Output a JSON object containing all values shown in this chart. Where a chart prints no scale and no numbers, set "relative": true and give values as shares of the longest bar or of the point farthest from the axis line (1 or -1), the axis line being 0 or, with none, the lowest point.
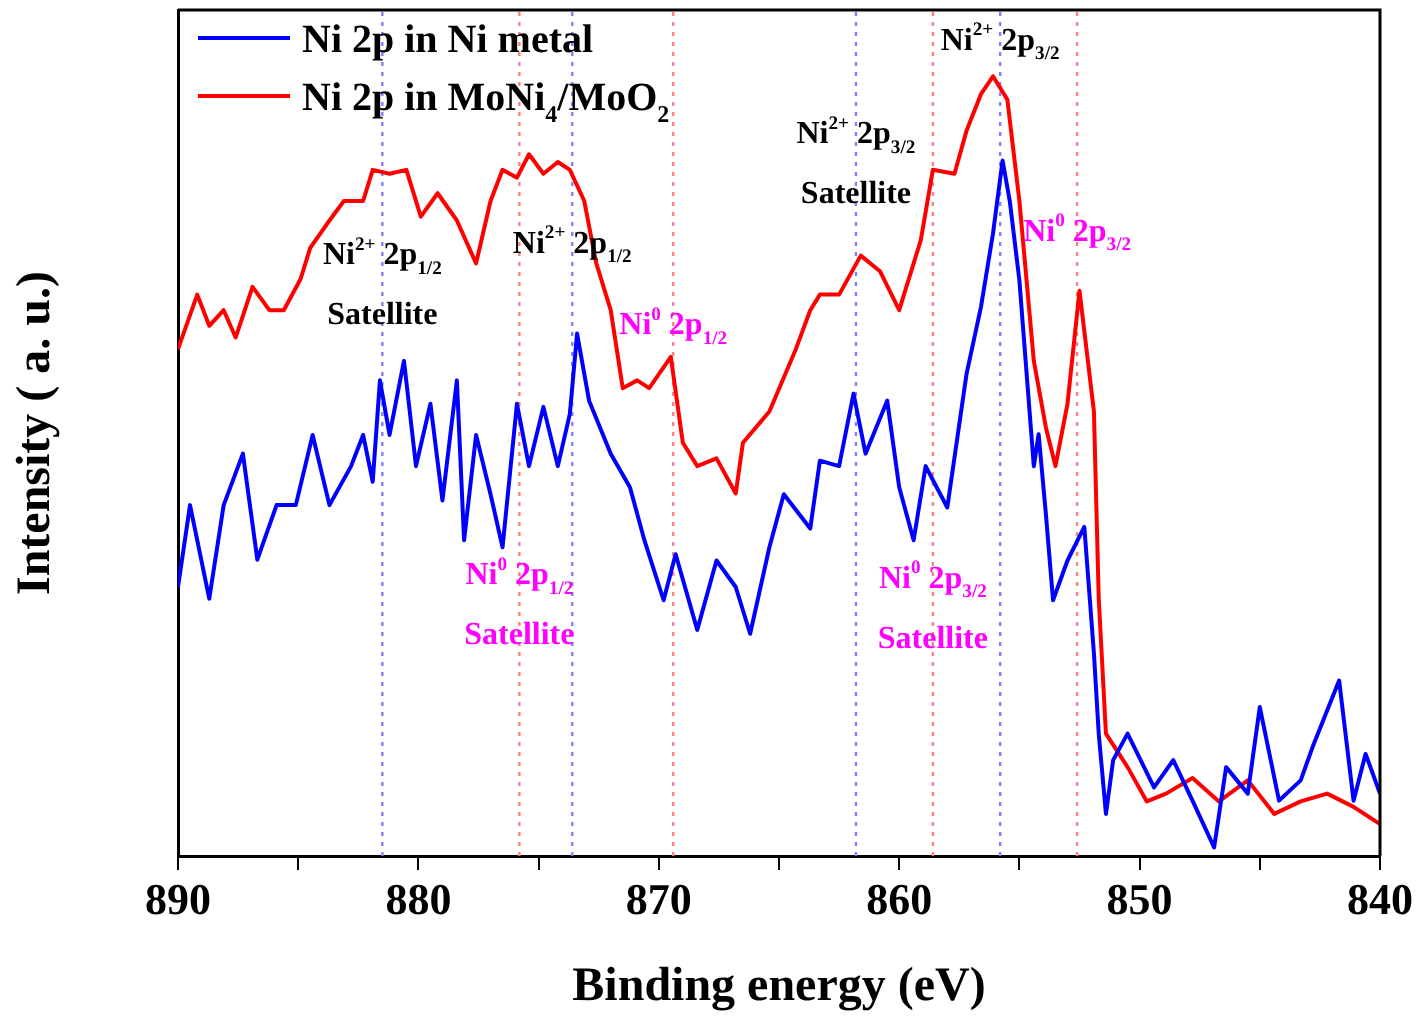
{
  "chart_data": {
    "type": "line",
    "relative": true,
    "xlabel": "Binding energy (eV)",
    "ylabel": "Intensity ( a. u.)",
    "xlim": [
      890,
      840
    ],
    "xticks": [
      890,
      {
        "value": 885,
        "label": null
      },
      880,
      {
        "value": 875,
        "label": null
      },
      870,
      {
        "value": 865,
        "label": null
      },
      860,
      {
        "value": 855,
        "label": null
      },
      850,
      {
        "value": 845,
        "label": null
      },
      840
    ],
    "grid": false,
    "legend": "top left",
    "line_style": "solid",
    "marker": "none",
    "series": [
      {
        "name": "Ni 2p in Ni metal",
        "color": "#0000ff",
        "x": [
          890.0,
          889.5,
          888.7,
          888.1,
          887.3,
          886.7,
          885.9,
          885.1,
          884.4,
          883.7,
          882.8,
          882.3,
          881.9,
          881.6,
          881.2,
          880.6,
          880.1,
          879.5,
          879.0,
          878.4,
          878.1,
          877.6,
          877.0,
          876.5,
          875.9,
          875.4,
          874.8,
          874.2,
          873.7,
          873.4,
          872.9,
          872.0,
          871.2,
          870.6,
          869.8,
          869.3,
          868.4,
          867.6,
          866.8,
          866.2,
          865.4,
          864.8,
          863.7,
          863.3,
          862.5,
          861.9,
          861.4,
          860.5,
          860.0,
          859.4,
          858.9,
          858.0,
          857.2,
          856.6,
          856.1,
          855.7,
          855.4,
          855.0,
          854.4,
          854.2,
          853.9,
          853.6,
          853.0,
          852.3,
          851.9,
          851.7,
          851.4,
          851.1,
          850.5,
          849.4,
          848.6,
          847.8,
          846.9,
          846.4,
          845.5,
          845.0,
          844.2,
          843.3,
          842.8,
          841.7,
          841.1,
          840.6,
          840.0
        ],
        "values": [
          0.345,
          0.45,
          0.33,
          0.45,
          0.516,
          0.38,
          0.45,
          0.45,
          0.54,
          0.45,
          0.5,
          0.54,
          0.48,
          0.61,
          0.54,
          0.635,
          0.5,
          0.58,
          0.456,
          0.61,
          0.405,
          0.54,
          0.464,
          0.396,
          0.58,
          0.5,
          0.576,
          0.5,
          0.567,
          0.67,
          0.584,
          0.516,
          0.473,
          0.405,
          0.328,
          0.387,
          0.29,
          0.379,
          0.345,
          0.285,
          0.396,
          0.464,
          0.42,
          0.507,
          0.5,
          0.593,
          0.516,
          0.584,
          0.473,
          0.405,
          0.5,
          0.447,
          0.618,
          0.704,
          0.798,
          0.892,
          0.84,
          0.738,
          0.5,
          0.541,
          0.439,
          0.328,
          0.379,
          0.422,
          0.26,
          0.157,
          0.054,
          0.123,
          0.157,
          0.088,
          0.123,
          0.071,
          0.011,
          0.114,
          0.08,
          0.191,
          0.071,
          0.097,
          0.14,
          0.225,
          0.071,
          0.131,
          0.08
        ]
      },
      {
        "name": "Ni 2p in MoNi$_{4}$/MoO$_{2}$",
        "color": "#ff0000",
        "x": [
          890.0,
          889.2,
          888.7,
          888.1,
          887.6,
          886.9,
          886.2,
          885.6,
          884.9,
          884.5,
          883.7,
          883.1,
          882.3,
          881.9,
          881.2,
          880.5,
          879.9,
          879.2,
          878.4,
          877.6,
          877.0,
          876.5,
          875.9,
          875.4,
          874.8,
          874.2,
          873.7,
          873.1,
          872.6,
          872.0,
          871.5,
          870.9,
          870.4,
          869.5,
          869.0,
          868.4,
          867.6,
          866.8,
          866.5,
          865.4,
          864.3,
          863.7,
          863.3,
          862.5,
          861.6,
          860.8,
          860.0,
          859.1,
          858.6,
          857.7,
          857.2,
          856.6,
          856.1,
          855.5,
          855.0,
          854.4,
          853.9,
          853.5,
          853.0,
          852.5,
          851.9,
          851.7,
          851.4,
          850.5,
          849.7,
          848.9,
          847.8,
          846.7,
          845.5,
          844.4,
          843.3,
          842.2,
          841.1,
          840.0
        ],
        "values": [
          0.65,
          0.72,
          0.68,
          0.7,
          0.665,
          0.73,
          0.7,
          0.7,
          0.74,
          0.78,
          0.815,
          0.84,
          0.84,
          0.88,
          0.875,
          0.88,
          0.82,
          0.85,
          0.815,
          0.76,
          0.84,
          0.88,
          0.87,
          0.9,
          0.875,
          0.89,
          0.88,
          0.84,
          0.76,
          0.7,
          0.6,
          0.61,
          0.6,
          0.64,
          0.53,
          0.5,
          0.51,
          0.465,
          0.53,
          0.57,
          0.65,
          0.7,
          0.72,
          0.72,
          0.77,
          0.75,
          0.7,
          0.79,
          0.88,
          0.875,
          0.93,
          0.977,
          1,
          0.97,
          0.84,
          0.635,
          0.55,
          0.5,
          0.58,
          0.725,
          0.57,
          0.33,
          0.157,
          0.114,
          0.07,
          0.08,
          0.1,
          0.07,
          0.097,
          0.054,
          0.07,
          0.08,
          0.063,
          0.041
        ]
      }
    ],
    "ref_lines": [
      {
        "axis": "x",
        "value": 881.5,
        "color": "#8080ff",
        "line_style": "dotted"
      },
      {
        "axis": "x",
        "value": 875.8,
        "color": "#ff8080",
        "line_style": "dotted"
      },
      {
        "axis": "x",
        "value": 873.6,
        "color": "#8080ff",
        "line_style": "dotted"
      },
      {
        "axis": "x",
        "value": 869.4,
        "color": "#ff8080",
        "line_style": "dotted"
      },
      {
        "axis": "x",
        "value": 861.8,
        "color": "#8080ff",
        "line_style": "dotted"
      },
      {
        "axis": "x",
        "value": 858.6,
        "color": "#ff8080",
        "line_style": "dotted"
      },
      {
        "axis": "x",
        "value": 855.8,
        "color": "#8080ff",
        "line_style": "dotted"
      },
      {
        "axis": "x",
        "value": 852.6,
        "color": "#ff8080",
        "line_style": "dotted"
      }
    ],
    "annotations": [
      {
        "text": "Ni$^{2+}$ 2p$_{1/2}$\nSatellite",
        "x": 881.5,
        "y": 0.8
      },
      {
        "text": "Ni$^{0}$ 2p$_{1/2}$\nSatellite",
        "x": 875.8,
        "y": 0.39
      },
      {
        "text": "Ni$^{2+}$ 2p$_{1/2}$",
        "x": 873.6,
        "y": 0.815
      },
      {
        "text": "Ni$^{0}$ 2p$_{1/2}$",
        "x": 869.4,
        "y": 0.71
      },
      {
        "text": "Ni$^{2+}$ 2p$_{3/2}$\nSatellite",
        "x": 861.8,
        "y": 0.955
      },
      {
        "text": "Ni$^{0}$ 2p$_{3/2}$\nSatellite",
        "x": 858.6,
        "y": 0.385
      },
      {
        "text": "Ni$^{2+}$ 2p$_{3/2}$",
        "x": 855.8,
        "y": 1.075
      },
      {
        "text": "Ni$^{0}$ 2p$_{3/2}$",
        "x": 852.6,
        "y": 0.83
      }
    ]
  }
}
